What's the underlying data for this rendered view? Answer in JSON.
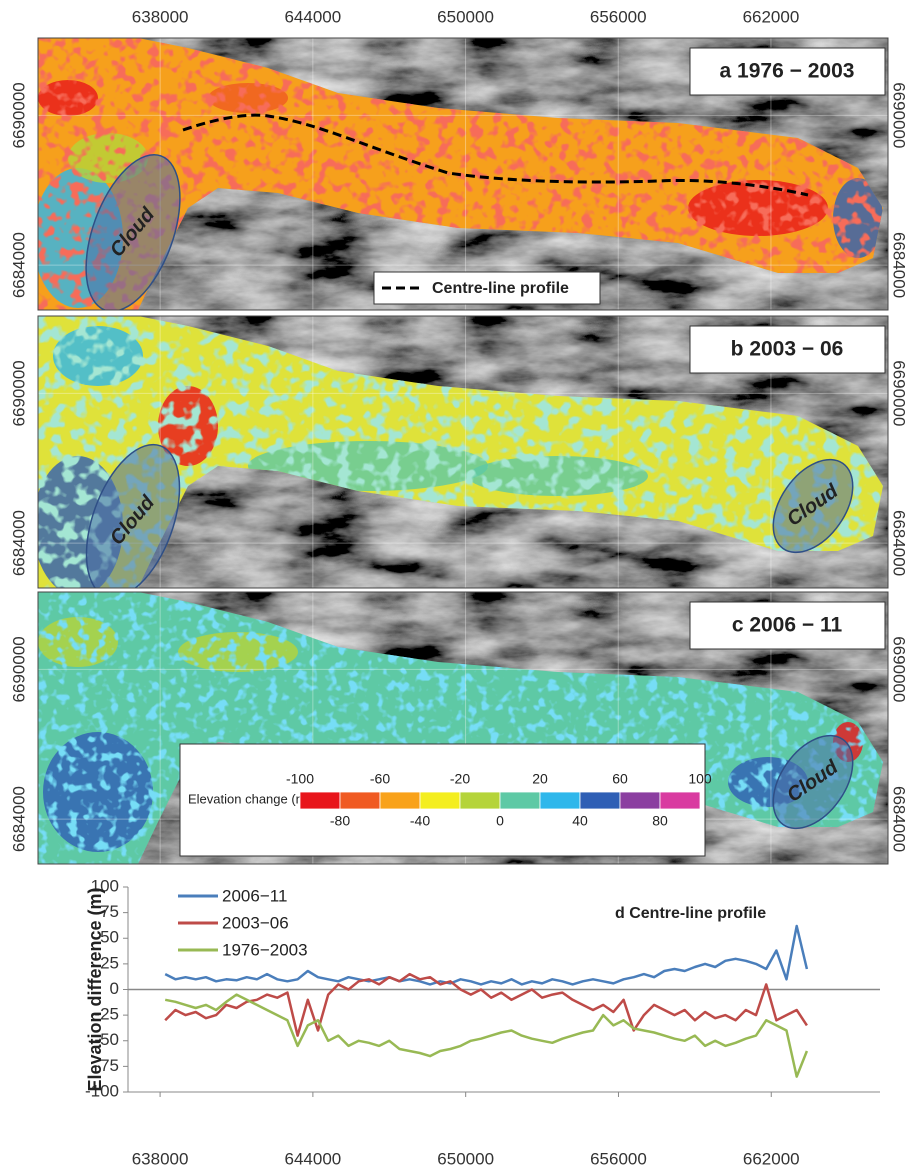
{
  "chart_data": [
    {
      "type": "map",
      "title": "a 1976 − 2003",
      "xlim": [
        633200,
        666600
      ],
      "ylim": [
        6682200,
        6693100
      ],
      "xticks": [
        638000,
        644000,
        650000,
        656000,
        662000
      ],
      "yticks": [
        6684000,
        6690000
      ],
      "annotations": [
        "Cloud"
      ],
      "legend": "Centre-line profile"
    },
    {
      "type": "map",
      "title": "b 2003 − 06",
      "xlim": [
        633200,
        666600
      ],
      "ylim": [
        6682200,
        6693100
      ],
      "xticks": [
        638000,
        644000,
        650000,
        656000,
        662000
      ],
      "yticks": [
        6684000,
        6690000
      ],
      "annotations": [
        "Cloud",
        "Cloud"
      ]
    },
    {
      "type": "map",
      "title": "c 2006 − 11",
      "xlim": [
        633200,
        666600
      ],
      "ylim": [
        6682200,
        6693100
      ],
      "xticks": [
        638000,
        644000,
        650000,
        656000,
        662000
      ],
      "yticks": [
        6684000,
        6690000
      ],
      "annotations": [
        "Cloud"
      ],
      "colorbar": {
        "label": "Elevation change (m)",
        "ticks": [
          -100,
          -80,
          -60,
          -40,
          -20,
          0,
          20,
          40,
          60,
          80,
          100
        ],
        "colors": [
          "#e8151b",
          "#f05a22",
          "#f9a21a",
          "#f4ee1f",
          "#b5d43a",
          "#5ec9a5",
          "#2fb7eb",
          "#2f5fb5",
          "#8b3ea0",
          "#d93ba0"
        ]
      }
    },
    {
      "type": "line",
      "title": "d Centre-line profile",
      "ylabel": "Elevation difference (m)",
      "xlim": [
        636740,
        666270
      ],
      "ylim": [
        -100,
        100
      ],
      "xticks": [
        638000,
        644000,
        650000,
        656000,
        662000
      ],
      "yticks": [
        -100,
        -75,
        -50,
        -25,
        0,
        25,
        50,
        75,
        100
      ],
      "legend": "top-left",
      "x": [
        638200,
        638600,
        639000,
        639400,
        639800,
        640200,
        640600,
        641000,
        641400,
        641800,
        642200,
        642600,
        643000,
        643400,
        643800,
        644200,
        644600,
        645000,
        645400,
        645800,
        646200,
        646600,
        647000,
        647400,
        647800,
        648200,
        648600,
        649000,
        649400,
        649800,
        650200,
        650600,
        651000,
        651400,
        651800,
        652200,
        652600,
        653000,
        653400,
        653800,
        654200,
        654600,
        655000,
        655400,
        655800,
        656200,
        656600,
        657000,
        657400,
        657800,
        658200,
        658600,
        659000,
        659400,
        659800,
        660200,
        660600,
        661000,
        661400,
        661800,
        662200,
        662600,
        663000,
        663400
      ],
      "series": [
        {
          "name": "2006−11",
          "color": "#4a7ebb",
          "values": [
            15,
            10,
            12,
            10,
            12,
            8,
            10,
            9,
            12,
            10,
            15,
            10,
            8,
            10,
            18,
            12,
            10,
            8,
            12,
            10,
            8,
            10,
            12,
            8,
            10,
            8,
            5,
            8,
            6,
            10,
            8,
            5,
            8,
            6,
            10,
            5,
            8,
            6,
            10,
            8,
            5,
            8,
            10,
            8,
            6,
            10,
            12,
            15,
            12,
            18,
            20,
            18,
            22,
            25,
            22,
            28,
            30,
            28,
            25,
            20,
            38,
            10,
            62,
            20
          ]
        },
        {
          "name": "2003−06",
          "color": "#be4b48",
          "values": [
            -30,
            -20,
            -25,
            -22,
            -28,
            -25,
            -15,
            -18,
            -12,
            -10,
            -5,
            -8,
            -3,
            -45,
            -10,
            -40,
            -5,
            5,
            0,
            8,
            10,
            5,
            12,
            8,
            15,
            10,
            12,
            5,
            8,
            0,
            -5,
            0,
            -8,
            -3,
            -10,
            -5,
            0,
            -8,
            -5,
            -3,
            -10,
            -15,
            -20,
            -15,
            -22,
            -10,
            -40,
            -25,
            -15,
            -20,
            -25,
            -20,
            -30,
            -22,
            -28,
            -25,
            -30,
            -20,
            -25,
            5,
            -30,
            -25,
            -20,
            -35
          ]
        },
        {
          "name": "1976−2003",
          "color": "#98b954",
          "values": [
            -10,
            -12,
            -15,
            -18,
            -15,
            -20,
            -12,
            -5,
            -10,
            -15,
            -20,
            -25,
            -30,
            -55,
            -35,
            -30,
            -50,
            -45,
            -55,
            -50,
            -52,
            -55,
            -50,
            -58,
            -60,
            -62,
            -65,
            -60,
            -58,
            -55,
            -50,
            -48,
            -45,
            -42,
            -40,
            -45,
            -48,
            -50,
            -52,
            -48,
            -45,
            -42,
            -40,
            -25,
            -35,
            -30,
            -38,
            -40,
            -42,
            -45,
            -48,
            -50,
            -45,
            -55,
            -50,
            -55,
            -52,
            -48,
            -45,
            -30,
            -35,
            -40,
            -85,
            -60
          ]
        }
      ]
    }
  ]
}
